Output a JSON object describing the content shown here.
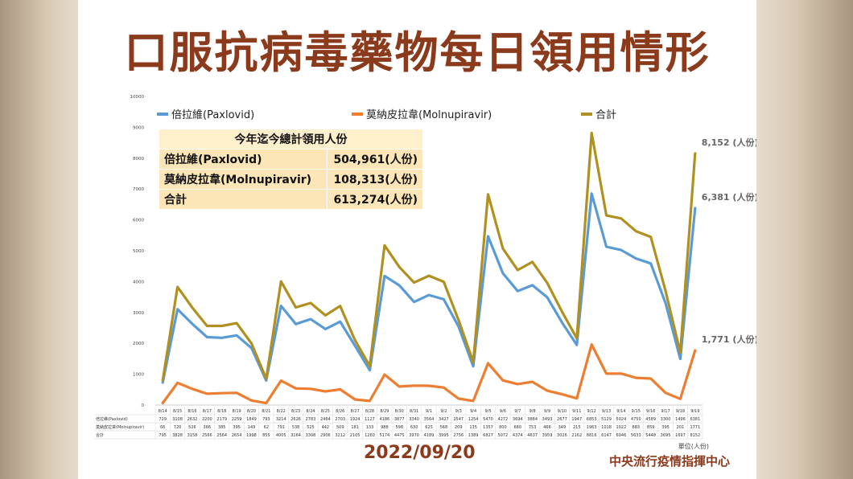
{
  "title": "口服抗病毒藥物每日領用情形",
  "date": "2022/09/20",
  "org": "中央流行疫情指揮中心",
  "unit_label": "單位(人份)",
  "summary": {
    "header": "今年迄今總計領用人份",
    "rows": [
      {
        "label": "倍拉維(Paxlovid)",
        "value": "504,961(人份)"
      },
      {
        "label": "莫納皮拉韋(Molnupiravir)",
        "value": "108,313(人份)"
      },
      {
        "label": "合計",
        "value": "613,274(人份)"
      }
    ]
  },
  "chart_data": {
    "type": "line",
    "ylim": [
      0,
      10000
    ],
    "yticks": [
      "0",
      "1000",
      "2000",
      "3000",
      "4000",
      "5000",
      "6000",
      "7000",
      "8000",
      "9000",
      "10000"
    ],
    "categories": [
      "8/14",
      "8/15",
      "8/16",
      "8/17",
      "8/18",
      "8/19",
      "8/20",
      "8/21",
      "8/22",
      "8/23",
      "8/24",
      "8/25",
      "8/26",
      "8/27",
      "8/28",
      "8/29",
      "8/30",
      "8/31",
      "9/1",
      "9/2",
      "9/3",
      "9/4",
      "9/5",
      "9/6",
      "9/7",
      "9/8",
      "9/9",
      "9/10",
      "9/11",
      "9/12",
      "9/13",
      "9/14",
      "9/15",
      "9/16",
      "9/17",
      "9/18",
      "9/19"
    ],
    "legend_placement": "top",
    "series": [
      {
        "name": "倍拉維(Paxlovid)",
        "table_name": "倍拉維(Paxlovid)",
        "color": "#5b9bd5",
        "values": [
          729,
          3108,
          2632,
          2200,
          2179,
          2259,
          1849,
          793,
          3214,
          2626,
          2783,
          2464,
          2703,
          1924,
          1127,
          4186,
          3877,
          3340,
          3564,
          3427,
          2547,
          1254,
          5470,
          4272,
          3694,
          3884,
          3493,
          2677,
          1947,
          6853,
          5129,
          5024,
          4750,
          4589,
          3300,
          1496,
          6381
        ]
      },
      {
        "name": "莫納皮拉韋(Molnupiravir)",
        "table_name": "莫納皮拉韋(Molnupiravir)",
        "color": "#ed7d31",
        "values": [
          66,
          720,
          526,
          366,
          385,
          395,
          149,
          62,
          791,
          538,
          525,
          442,
          509,
          181,
          133,
          988,
          598,
          630,
          625,
          568,
          209,
          135,
          1357,
          800,
          680,
          753,
          466,
          349,
          215,
          1963,
          1018,
          1022,
          883,
          859,
          395,
          201,
          1771
        ]
      },
      {
        "name": "合計",
        "table_name": "合計",
        "color": "#b09020",
        "values": [
          795,
          3828,
          3158,
          2566,
          2564,
          2654,
          1998,
          855,
          4005,
          3164,
          3308,
          2906,
          3212,
          2105,
          1260,
          5174,
          4475,
          3970,
          4189,
          3995,
          2756,
          1389,
          6827,
          5072,
          4374,
          4637,
          3959,
          3026,
          2162,
          8816,
          6147,
          6046,
          5633,
          5448,
          3695,
          1697,
          8152
        ]
      }
    ],
    "annotations": [
      "8,152 (人份)",
      "6,381 (人份)",
      "1,771 (人份)"
    ]
  }
}
